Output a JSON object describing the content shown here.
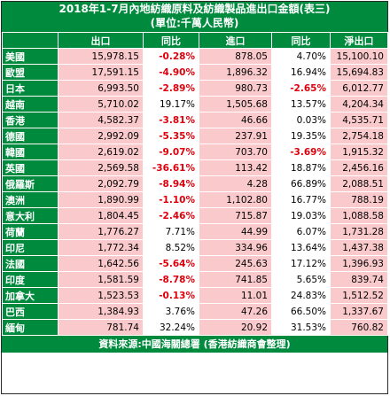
{
  "title": "2018年1-7月內地紡織原料及紡織製品進出口金額(表三)",
  "subtitle": "(單位:千萬人民幣)",
  "columns": [
    "",
    "出口",
    "同比",
    "進口",
    "同比",
    "淨出口"
  ],
  "rows": [
    {
      "country": "美國",
      "export": "15,978.15",
      "export_yoy": "-0.28%",
      "import": "878.05",
      "import_yoy": "4.70%",
      "net": "15,100.10"
    },
    {
      "country": "歐盟",
      "export": "17,591.15",
      "export_yoy": "-4.90%",
      "import": "1,896.32",
      "import_yoy": "16.94%",
      "net": "15,694.83"
    },
    {
      "country": "日本",
      "export": "6,993.50",
      "export_yoy": "-2.89%",
      "import": "980.73",
      "import_yoy": "-2.65%",
      "net": "6,012.77"
    },
    {
      "country": "越南",
      "export": "5,710.02",
      "export_yoy": "19.17%",
      "import": "1,505.68",
      "import_yoy": "13.57%",
      "net": "4,204.34"
    },
    {
      "country": "香港",
      "export": "4,582.37",
      "export_yoy": "-3.81%",
      "import": "46.66",
      "import_yoy": "0.03%",
      "net": "4,535.71"
    },
    {
      "country": "德國",
      "export": "2,992.09",
      "export_yoy": "-5.35%",
      "import": "237.91",
      "import_yoy": "19.35%",
      "net": "2,754.18"
    },
    {
      "country": "韓國",
      "export": "2,619.02",
      "export_yoy": "-9.07%",
      "import": "703.70",
      "import_yoy": "-3.69%",
      "net": "1,915.32"
    },
    {
      "country": "英國",
      "export": "2,569.58",
      "export_yoy": "-36.61%",
      "import": "113.42",
      "import_yoy": "18.87%",
      "net": "2,456.16"
    },
    {
      "country": "俄羅斯",
      "export": "2,092.79",
      "export_yoy": "-8.94%",
      "import": "4.28",
      "import_yoy": "66.89%",
      "net": "2,088.51"
    },
    {
      "country": "澳洲",
      "export": "1,890.99",
      "export_yoy": "-1.10%",
      "import": "1,102.80",
      "import_yoy": "16.77%",
      "net": "788.19"
    },
    {
      "country": "意大利",
      "export": "1,804.45",
      "export_yoy": "-2.46%",
      "import": "715.87",
      "import_yoy": "19.03%",
      "net": "1,088.58"
    },
    {
      "country": "荷蘭",
      "export": "1,776.27",
      "export_yoy": "7.71%",
      "import": "44.99",
      "import_yoy": "6.07%",
      "net": "1,731.28"
    },
    {
      "country": "印尼",
      "export": "1,772.34",
      "export_yoy": "8.52%",
      "import": "334.96",
      "import_yoy": "13.64%",
      "net": "1,437.38"
    },
    {
      "country": "法國",
      "export": "1,642.56",
      "export_yoy": "-5.64%",
      "import": "245.63",
      "import_yoy": "17.12%",
      "net": "1,396.93"
    },
    {
      "country": "印度",
      "export": "1,581.59",
      "export_yoy": "-8.78%",
      "import": "741.85",
      "import_yoy": "5.65%",
      "net": "839.74"
    },
    {
      "country": "加拿大",
      "export": "1,523.53",
      "export_yoy": "-0.13%",
      "import": "11.01",
      "import_yoy": "24.83%",
      "net": "1,512.52"
    },
    {
      "country": "巴西",
      "export": "1,384.93",
      "export_yoy": "3.76%",
      "import": "47.26",
      "import_yoy": "66.50%",
      "net": "1,337.67"
    },
    {
      "country": "緬甸",
      "export": "781.74",
      "export_yoy": "32.24%",
      "import": "20.92",
      "import_yoy": "31.53%",
      "net": "760.82"
    }
  ],
  "footer": "資料來源:中國海關總署 (香港紡織商會整理)",
  "colors": {
    "header_green": "#008a3e",
    "cell_pink": "#f9c9cb",
    "negative_red": "#e0000b"
  }
}
